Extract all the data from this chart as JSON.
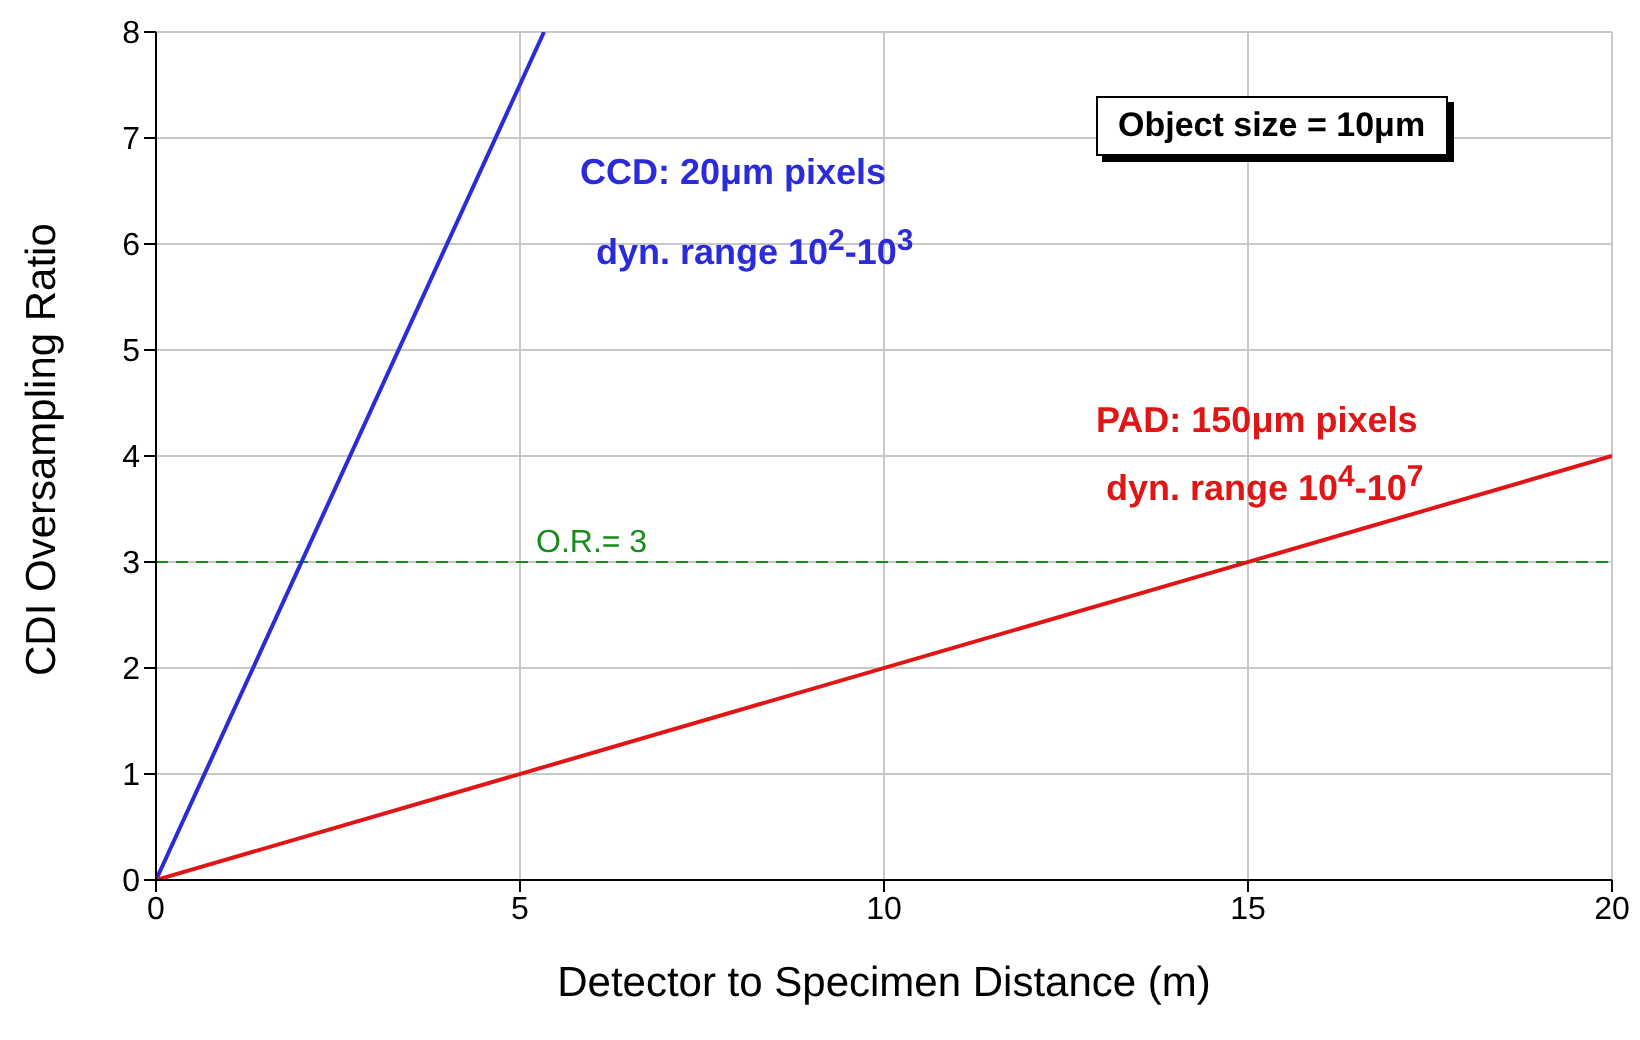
{
  "chart_data": {
    "type": "line",
    "xlabel": "Detector to Specimen Distance (m)",
    "ylabel": "CDI Oversampling Ratio",
    "series": [
      {
        "color": "#2b2bd9",
        "x": [
          0,
          5.33
        ],
        "values": [
          0,
          8
        ]
      },
      {
        "color": "#e01515",
        "x": [
          0,
          20
        ],
        "values": [
          0,
          4
        ]
      }
    ],
    "xlim": [
      0,
      20
    ],
    "xticks": [
      0,
      5,
      10,
      15,
      20
    ],
    "ylim": [
      0,
      8
    ],
    "yticks": [
      0,
      1,
      2,
      3,
      4,
      5,
      6,
      7,
      8
    ],
    "grid": true,
    "marker": "none",
    "line_style": "solid",
    "ref_lines": [
      {
        "axis": "y",
        "value": 3,
        "label": "O.R.= 3",
        "color": "#1a8a1a",
        "line_style": "dashed"
      }
    ],
    "annotations": [
      "CCD: 20μm pixels",
      "dyn. range 10$^{2}$-10$^{3}$",
      "PAD: 150μm pixels",
      "dyn. range 10$^{4}$-10$^{7}$",
      "Object size = 10μm"
    ]
  }
}
